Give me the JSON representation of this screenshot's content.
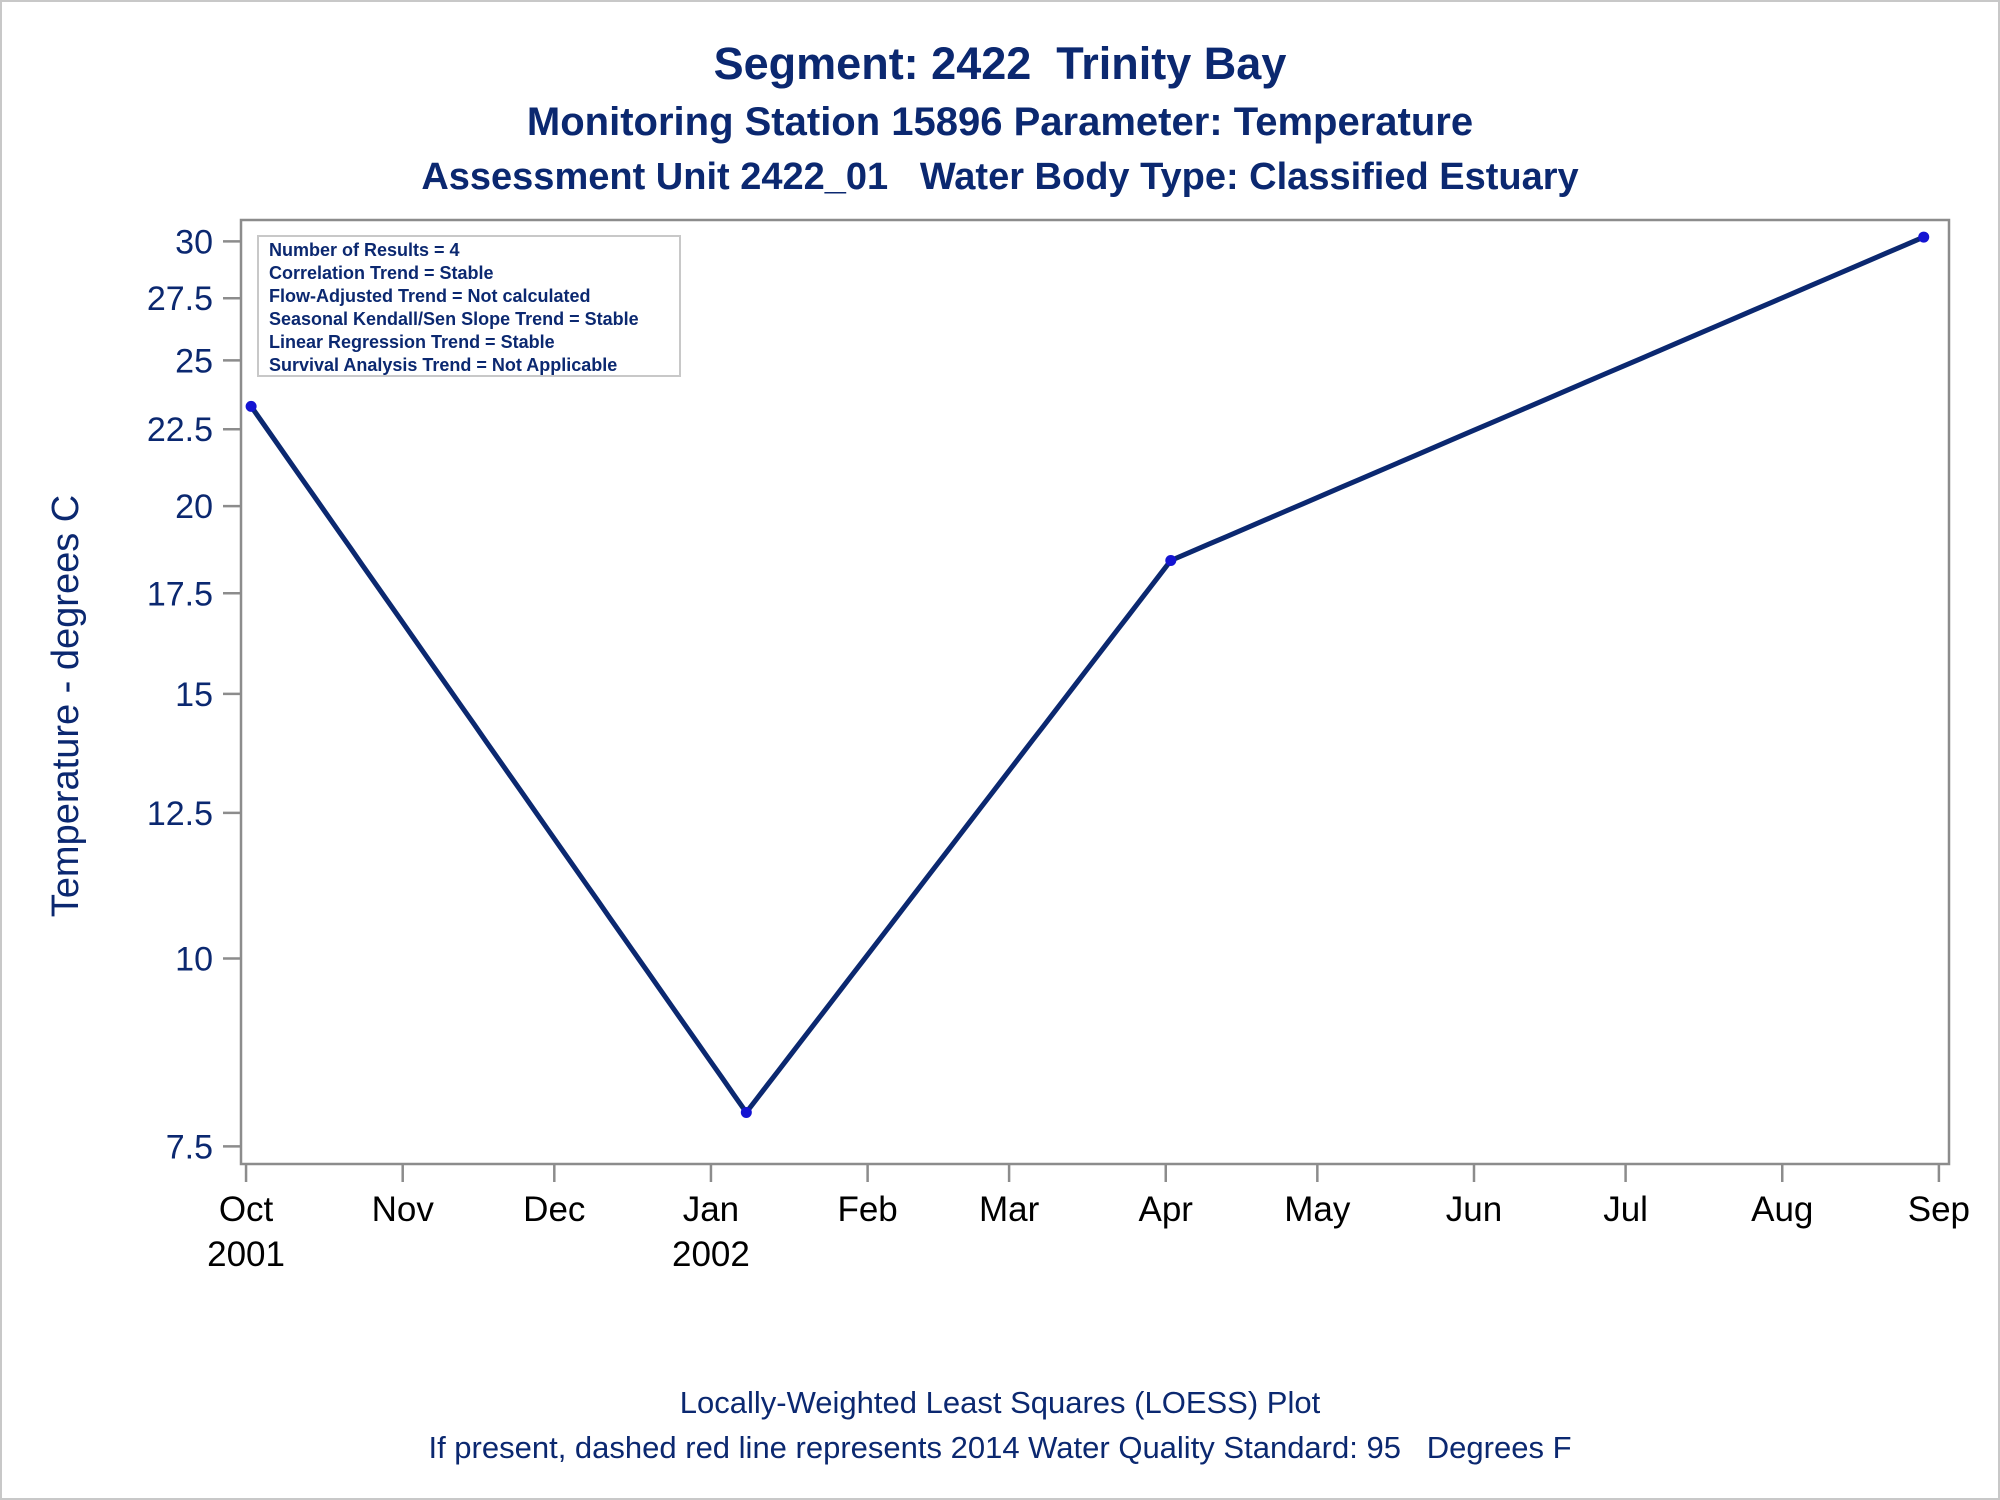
{
  "titles": {
    "line1": "Segment: 2422  Trinity Bay",
    "line2": "Monitoring Station 15896 Parameter: Temperature",
    "line3": "Assessment Unit 2422_01   Water Body Type: Classified Estuary"
  },
  "footnotes": {
    "line1": "Locally-Weighted Least Squares (LOESS) Plot",
    "line2": "If present, dashed red line represents 2014 Water Quality Standard: 95   Degrees F"
  },
  "info_box": [
    "Number of Results = 4",
    "Correlation Trend = Stable",
    "Flow-Adjusted Trend = Not calculated",
    "Seasonal Kendall/Sen Slope Trend = Stable",
    "Linear Regression Trend = Stable",
    "Survival Analysis Trend = Not Applicable"
  ],
  "colors": {
    "line": "#0b2870",
    "marker": "#1414d2",
    "text": "#0b2870",
    "axis": "#8c8c8c"
  },
  "chart_data": {
    "type": "line",
    "ylabel": "Temperature - degrees C",
    "y_scale": "log",
    "ylim": [
      7.3,
      31
    ],
    "y_ticks": [
      7.5,
      10,
      12.5,
      15,
      17.5,
      20,
      22.5,
      25,
      27.5,
      30
    ],
    "y_tick_labels": [
      "7.5",
      "10",
      "12.5",
      "15",
      "17.5",
      "20",
      "22.5",
      "25",
      "27.5",
      "30"
    ],
    "xlim": [
      "2001-09-30",
      "2002-09-03"
    ],
    "x_ticks": [
      {
        "date": "2001-10-01",
        "line1": "Oct",
        "line2": "2001"
      },
      {
        "date": "2001-11-01",
        "line1": "Nov",
        "line2": ""
      },
      {
        "date": "2001-12-01",
        "line1": "Dec",
        "line2": ""
      },
      {
        "date": "2002-01-01",
        "line1": "Jan",
        "line2": "2002"
      },
      {
        "date": "2002-02-01",
        "line1": "Feb",
        "line2": ""
      },
      {
        "date": "2002-03-01",
        "line1": "Mar",
        "line2": ""
      },
      {
        "date": "2002-04-01",
        "line1": "Apr",
        "line2": ""
      },
      {
        "date": "2002-05-01",
        "line1": "May",
        "line2": ""
      },
      {
        "date": "2002-06-01",
        "line1": "Jun",
        "line2": ""
      },
      {
        "date": "2002-07-01",
        "line1": "Jul",
        "line2": ""
      },
      {
        "date": "2002-08-01",
        "line1": "Aug",
        "line2": ""
      },
      {
        "date": "2002-09-01",
        "line1": "Sep",
        "line2": ""
      }
    ],
    "points": [
      {
        "date": "2001-10-02",
        "value": 23.3
      },
      {
        "date": "2002-01-08",
        "value": 7.9
      },
      {
        "date": "2002-04-02",
        "value": 18.4
      },
      {
        "date": "2002-08-29",
        "value": 30.2
      }
    ]
  }
}
